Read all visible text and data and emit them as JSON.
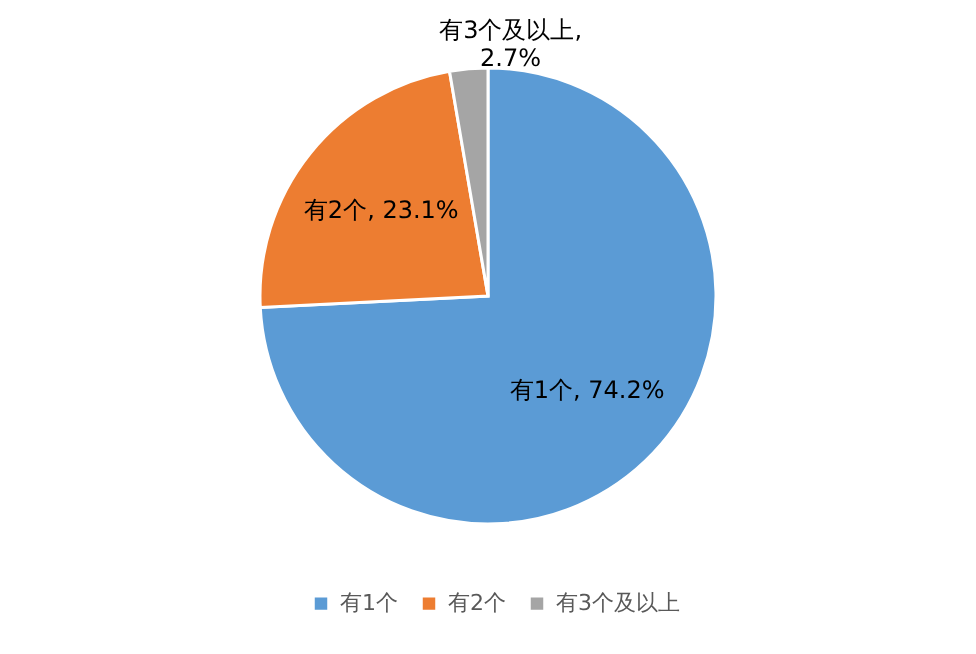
{
  "chart_data": {
    "type": "pie",
    "categories": [
      "有1个",
      "有2个",
      "有3个及以上"
    ],
    "values": [
      74.2,
      23.1,
      2.7
    ],
    "colors": [
      "#5b9bd5",
      "#ed7d31",
      "#a5a5a5"
    ],
    "value_labels": [
      "有1个, 74.2%",
      "有2个, 23.1%",
      "有3个及以上,\n2.7%"
    ],
    "legend": "bottom"
  }
}
